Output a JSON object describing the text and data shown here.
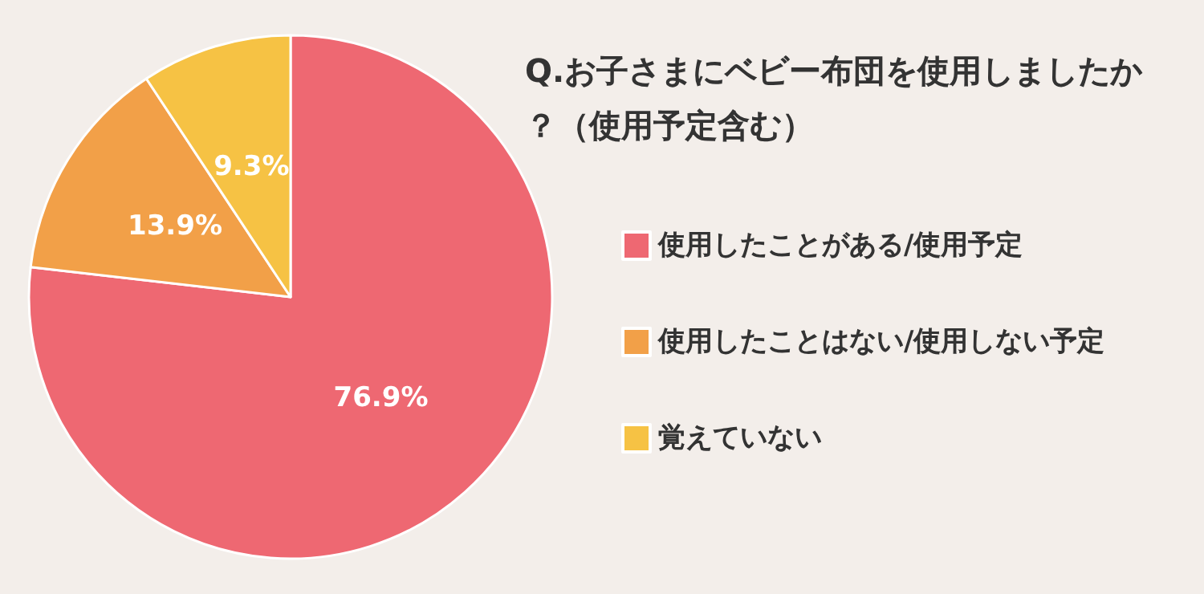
{
  "chart_data": {
    "type": "pie",
    "title": "Q.お子さまにベビー布団を使用しましたか？（使用予定含む）",
    "categories": [
      "使用したことがある/使用予定",
      "使用したことはない/使用しない予定",
      "覚えていない"
    ],
    "values": [
      76.9,
      13.9,
      9.3
    ],
    "colors": [
      "#ee6872",
      "#f2a048",
      "#f6c244"
    ],
    "value_labels": [
      "76.9%",
      "13.9%",
      "9.3%"
    ],
    "legend": "right"
  }
}
